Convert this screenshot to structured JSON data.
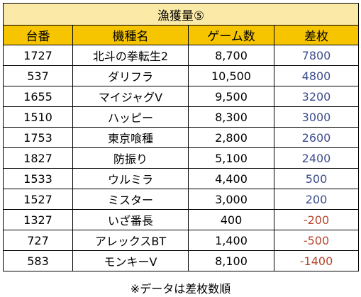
{
  "title": "漁獲量⑤",
  "columns": [
    "台番",
    "機種名",
    "ゲーム数",
    "差枚"
  ],
  "rows": [
    {
      "machine": "1727",
      "name": "北斗の拳転生2",
      "games": "8,700",
      "diff": "7800",
      "sign": "pos"
    },
    {
      "machine": "537",
      "name": "ダリフラ",
      "games": "10,500",
      "diff": "4800",
      "sign": "pos"
    },
    {
      "machine": "1655",
      "name": "マイジャグV",
      "games": "9,500",
      "diff": "3200",
      "sign": "pos"
    },
    {
      "machine": "1510",
      "name": "ハッピー",
      "games": "8,300",
      "diff": "3000",
      "sign": "pos"
    },
    {
      "machine": "1753",
      "name": "東京喰種",
      "games": "2,800",
      "diff": "2600",
      "sign": "pos"
    },
    {
      "machine": "1827",
      "name": "防振り",
      "games": "5,100",
      "diff": "2400",
      "sign": "pos"
    },
    {
      "machine": "1533",
      "name": "ウルミラ",
      "games": "4,400",
      "diff": "500",
      "sign": "pos"
    },
    {
      "machine": "1527",
      "name": "ミスター",
      "games": "3,000",
      "diff": "200",
      "sign": "pos"
    },
    {
      "machine": "1327",
      "name": "いざ番長",
      "games": "400",
      "diff": "-200",
      "sign": "neg"
    },
    {
      "machine": "727",
      "name": "アレックスBT",
      "games": "1,400",
      "diff": "-500",
      "sign": "neg"
    },
    {
      "machine": "583",
      "name": "モンキーV",
      "games": "8,100",
      "diff": "-1400",
      "sign": "neg"
    }
  ],
  "footnote": "※データは差枚数順",
  "colors": {
    "title_bg": "#fbe9a7",
    "header_bg": "#f6c500",
    "positive_text": "#3d4d8c",
    "negative_text": "#b8452b"
  }
}
